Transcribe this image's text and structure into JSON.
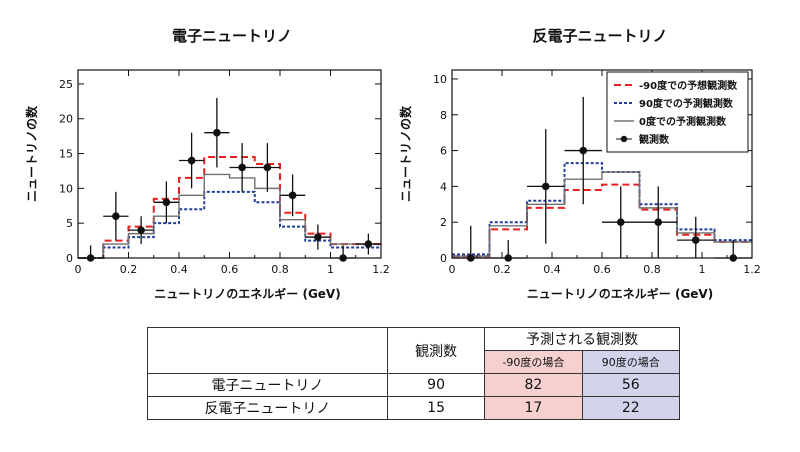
{
  "charts": [
    {
      "type": "histogram",
      "title": "電子ニュートリノ",
      "xlabel": "ニュートリノのエネルギー (GeV)",
      "ylabel": "ニュートリノの数",
      "xlim": [
        0,
        1.2
      ],
      "ylim": [
        0,
        27
      ],
      "xticks": [
        "0",
        "0.2",
        "0.4",
        "0.6",
        "0.8",
        "1",
        "1.2"
      ],
      "xtick_values": [
        0,
        0.2,
        0.4,
        0.6,
        0.8,
        1.0,
        1.2
      ],
      "yticks": [
        "0",
        "5",
        "10",
        "15",
        "20",
        "25"
      ],
      "ytick_values": [
        0,
        5,
        10,
        15,
        20,
        25
      ],
      "bin_edges": [
        0,
        0.1,
        0.2,
        0.3,
        0.4,
        0.5,
        0.6,
        0.7,
        0.8,
        0.9,
        1.0,
        1.1,
        1.2
      ],
      "series": [
        {
          "style": "dashed",
          "color": "#e8201f",
          "values": [
            0,
            2.5,
            4.5,
            8.5,
            11.5,
            14.5,
            14.5,
            13.5,
            6.5,
            3.5,
            2.0,
            2.0
          ]
        },
        {
          "style": "dotted",
          "color": "#1f3f9a",
          "values": [
            0,
            1.5,
            3.0,
            5.0,
            7.0,
            9.5,
            9.5,
            8.0,
            4.5,
            2.5,
            1.5,
            1.5
          ]
        },
        {
          "style": "solid",
          "color": "#707070",
          "values": [
            0,
            2.0,
            3.5,
            6.0,
            9.0,
            12.0,
            11.5,
            10.0,
            5.5,
            3.0,
            2.0,
            2.0
          ]
        }
      ],
      "points": [
        {
          "x": 0.05,
          "y": 0,
          "err": 1.8
        },
        {
          "x": 0.15,
          "y": 6,
          "err": 3.5
        },
        {
          "x": 0.25,
          "y": 4,
          "err": 2.0
        },
        {
          "x": 0.35,
          "y": 8,
          "err": 3.0
        },
        {
          "x": 0.45,
          "y": 14,
          "err": 4.0
        },
        {
          "x": 0.55,
          "y": 18,
          "err": 5.0
        },
        {
          "x": 0.65,
          "y": 13,
          "err": 3.5
        },
        {
          "x": 0.75,
          "y": 13,
          "err": 3.5
        },
        {
          "x": 0.85,
          "y": 9,
          "err": 3.0
        },
        {
          "x": 0.95,
          "y": 3,
          "err": 1.8
        },
        {
          "x": 1.05,
          "y": 0,
          "err": 1.8
        },
        {
          "x": 1.15,
          "y": 2,
          "err": 1.5
        }
      ]
    },
    {
      "type": "histogram",
      "title": "反電子ニュートリノ",
      "xlabel": "ニュートリノのエネルギー (GeV)",
      "ylabel": "ニュートリノの数",
      "xlim": [
        0,
        1.2
      ],
      "ylim": [
        0,
        10.5
      ],
      "xticks": [
        "0",
        "0.2",
        "0.4",
        "0.6",
        "0.8",
        "1",
        "1.2"
      ],
      "xtick_values": [
        0,
        0.2,
        0.4,
        0.6,
        0.8,
        1.0,
        1.2
      ],
      "yticks": [
        "0",
        "2",
        "4",
        "6",
        "8",
        "10"
      ],
      "ytick_values": [
        0,
        2,
        4,
        6,
        8,
        10
      ],
      "bin_edges": [
        0,
        0.15,
        0.3,
        0.45,
        0.6,
        0.75,
        0.9,
        1.05,
        1.2
      ],
      "series": [
        {
          "style": "dashed",
          "color": "#e8201f",
          "values": [
            0.1,
            1.6,
            2.8,
            3.8,
            4.1,
            2.7,
            1.3,
            0.9
          ]
        },
        {
          "style": "dotted",
          "color": "#1f3f9a",
          "values": [
            0.2,
            2.0,
            3.2,
            5.3,
            4.8,
            3.0,
            1.6,
            1.0
          ]
        },
        {
          "style": "solid",
          "color": "#707070",
          "values": [
            0.1,
            1.8,
            3.0,
            4.4,
            4.8,
            2.8,
            1.4,
            0.9
          ]
        }
      ],
      "points": [
        {
          "x": 0.075,
          "y": 0,
          "err": 1.8
        },
        {
          "x": 0.225,
          "y": 0,
          "err": 1.0
        },
        {
          "x": 0.375,
          "y": 4,
          "err": 3.2
        },
        {
          "x": 0.525,
          "y": 6,
          "err": 3.0
        },
        {
          "x": 0.675,
          "y": 2,
          "err": 2.0
        },
        {
          "x": 0.825,
          "y": 2,
          "err": 2.0
        },
        {
          "x": 0.975,
          "y": 1,
          "err": 1.3
        },
        {
          "x": 1.125,
          "y": 0,
          "err": 1.0
        }
      ],
      "legend": {
        "position": "top-right",
        "entries": [
          {
            "label": "-90度での予想観測数",
            "style": "dashed",
            "color": "#e8201f"
          },
          {
            "label": "90度での予測観測数",
            "style": "dotted",
            "color": "#1f3f9a"
          },
          {
            "label": "0度での予測観測数",
            "style": "solid",
            "color": "#707070"
          },
          {
            "label": "観測数",
            "style": "point",
            "color": "#111111"
          }
        ]
      }
    }
  ],
  "table": {
    "header_observed": "観測数",
    "header_predicted": "予測される観測数",
    "sub_minus90": "-90度の場合",
    "sub_90": "90度の場合",
    "colors": {
      "minus90": "#f6d0cf",
      "plus90": "#d3d3ec"
    },
    "rows": [
      {
        "label": "電子ニュートリノ",
        "observed": "90",
        "minus90": "82",
        "plus90": "56"
      },
      {
        "label": "反電子ニュートリノ",
        "observed": "15",
        "minus90": "17",
        "plus90": "22"
      }
    ]
  }
}
